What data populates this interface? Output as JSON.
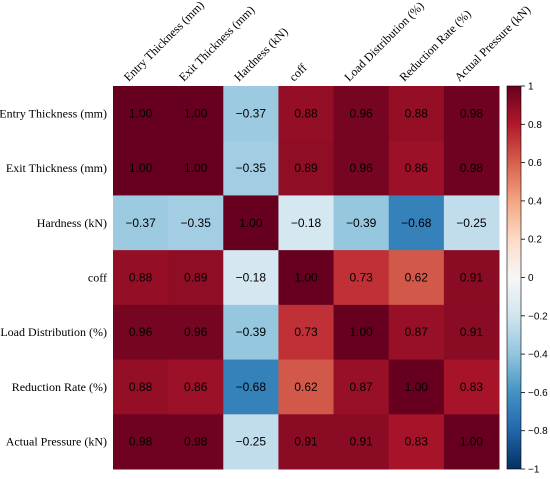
{
  "chart_data": {
    "type": "heatmap",
    "title": "",
    "labels": [
      "Entry Thickness (mm)",
      "Exit Thickness (mm)",
      "Hardness (kN)",
      "coff",
      "Load Distribution (%)",
      "Reduction Rate (%)",
      "Actual Pressure (kN)"
    ],
    "matrix": [
      [
        1.0,
        1.0,
        -0.37,
        0.88,
        0.96,
        0.88,
        0.98
      ],
      [
        1.0,
        1.0,
        -0.35,
        0.89,
        0.96,
        0.86,
        0.98
      ],
      [
        -0.37,
        -0.35,
        1.0,
        -0.18,
        -0.39,
        -0.68,
        -0.25
      ],
      [
        0.88,
        0.89,
        -0.18,
        1.0,
        0.73,
        0.62,
        0.91
      ],
      [
        0.96,
        0.96,
        -0.39,
        0.73,
        1.0,
        0.87,
        0.91
      ],
      [
        0.88,
        0.86,
        -0.68,
        0.62,
        0.87,
        1.0,
        0.83
      ],
      [
        0.98,
        0.98,
        -0.25,
        0.91,
        0.91,
        0.83,
        1.0
      ]
    ],
    "colorbar": {
      "range": [
        -1,
        1
      ],
      "ticks": [
        "1",
        "0.8",
        "0.6",
        "0.4",
        "0.2",
        "0",
        "−0.2",
        "−0.4",
        "−0.6",
        "−0.8",
        "−1"
      ],
      "tick_values": [
        1,
        0.8,
        0.6,
        0.4,
        0.2,
        0,
        -0.2,
        -0.4,
        -0.6,
        -0.8,
        -1
      ],
      "colormap": "RdBu_r"
    }
  }
}
